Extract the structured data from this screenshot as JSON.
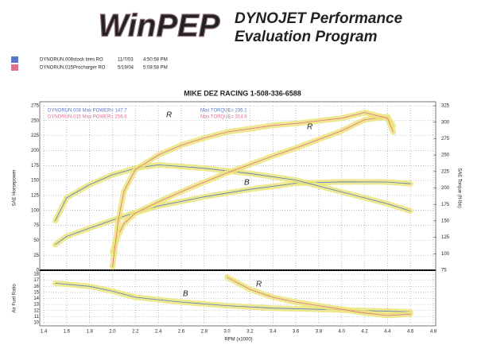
{
  "header": {
    "logo": "WinPEP",
    "title_line1": "DYNOJET Performance",
    "title_line2": "Evaluation Program",
    "runs": [
      {
        "file": "DYNORUN.008",
        "note": "stock tires RO",
        "date": "11/7/03",
        "time": "4:50:58 PM",
        "color": "#5b78c8"
      },
      {
        "file": "DYNORUN.015",
        "note": "Procharger RO",
        "date": "5/19/04",
        "time": "5:08:58 PM",
        "color": "#e0708e"
      }
    ]
  },
  "chart_data": [
    {
      "type": "line",
      "title": "MIKE DEZ RACING    1-508-336-6588",
      "ylabel": "SAE Horsepower",
      "y2label": "SAE Torque (ft-lbs)",
      "xlim": [
        1.4,
        4.8
      ],
      "ylim": [
        0,
        275
      ],
      "yticks": [
        0,
        25,
        50,
        75,
        100,
        125,
        150,
        175,
        200,
        225,
        250,
        275
      ],
      "y2lim": [
        75,
        325
      ],
      "y2ticks": [
        75,
        100,
        125,
        150,
        175,
        200,
        225,
        250,
        275,
        300,
        325
      ],
      "grid": true,
      "highlight": "#ebe57a",
      "series": [
        {
          "name": "DYNORUN.008  Max POWER= 147.7",
          "color": "#5b78c8",
          "x": [
            1.5,
            1.6,
            1.8,
            2.0,
            2.2,
            2.4,
            2.8,
            3.2,
            3.6,
            4.0,
            4.4,
            4.6
          ],
          "values": [
            42.8,
            56.4,
            70.3,
            83.8,
            96.3,
            107.4,
            122.6,
            135.3,
            145.3,
            147.7,
            147.5,
            144.5
          ]
        },
        {
          "name": "Max TORQUE= 235.1",
          "color": "#5b78c8",
          "axis": "y2",
          "x": [
            1.5,
            1.6,
            1.8,
            2.0,
            2.2,
            2.4,
            2.8,
            3.2,
            3.6,
            4.0,
            4.4,
            4.6
          ],
          "values": [
            150,
            185,
            205,
            220,
            230,
            235.1,
            230,
            222,
            212,
            194,
            176,
            165
          ]
        },
        {
          "name": "DYNORUN.015  Max POWER= 256.6",
          "color": "#e0708e",
          "x": [
            2.0,
            2.05,
            2.1,
            2.2,
            2.4,
            2.6,
            2.8,
            3.0,
            3.2,
            3.4,
            3.6,
            3.8,
            4.0,
            4.2,
            4.4,
            4.45
          ],
          "values": [
            30.5,
            58.6,
            77.9,
            95.5,
            114.2,
            131.2,
            147.2,
            162.8,
            176.7,
            191.0,
            204.3,
            218.5,
            233.0,
            251.6,
            256.6,
            241.5
          ]
        },
        {
          "name": "Max TORQUE= 314.6",
          "color": "#e0708e",
          "axis": "y2",
          "x": [
            2.0,
            2.05,
            2.1,
            2.2,
            2.4,
            2.6,
            2.8,
            3.0,
            3.2,
            3.4,
            3.6,
            3.8,
            4.0,
            4.2,
            4.4,
            4.45
          ],
          "values": [
            80,
            150,
            195,
            228,
            250,
            265,
            276,
            285,
            290,
            295,
            298,
            302,
            306,
            314.6,
            306,
            285
          ]
        }
      ],
      "annotations": [
        "R",
        "B",
        "R"
      ]
    },
    {
      "type": "line",
      "ylabel": "Air Fuel Ratio",
      "xlabel": "RPM (x1000)",
      "xlim": [
        1.4,
        4.8
      ],
      "xticks": [
        1.4,
        1.6,
        1.8,
        {
          "value": 2,
          "label": "2.0"
        },
        2.2,
        2.4,
        2.6,
        2.8,
        {
          "value": 3,
          "label": "3.0"
        },
        3.2,
        3.4,
        3.6,
        3.8,
        {
          "value": 4,
          "label": "4.0"
        },
        4.2,
        4.4,
        4.6,
        4.8
      ],
      "ylim": [
        10,
        18
      ],
      "yticks": [
        10,
        11,
        12,
        13,
        14,
        15,
        16,
        17,
        18
      ],
      "grid": true,
      "highlight": "#ebe57a",
      "series": [
        {
          "name": "DYNORUN.008",
          "color": "#5b78c8",
          "x": [
            1.5,
            1.8,
            2.0,
            2.2,
            2.6,
            3.0,
            3.4,
            3.8,
            4.2,
            4.6
          ],
          "values": [
            16.5,
            16,
            15.2,
            14.2,
            13.4,
            12.8,
            12.4,
            12.2,
            12.0,
            11.8
          ]
        },
        {
          "name": "DYNORUN.015",
          "color": "#e0708e",
          "x": [
            3.0,
            3.2,
            3.4,
            3.6,
            3.8,
            4.0,
            4.2,
            4.4,
            4.6
          ],
          "values": [
            17.5,
            15.5,
            14.2,
            13.4,
            12.8,
            12.2,
            11.6,
            11.2,
            11.4
          ]
        }
      ],
      "annotations": [
        "B",
        "R"
      ]
    }
  ]
}
